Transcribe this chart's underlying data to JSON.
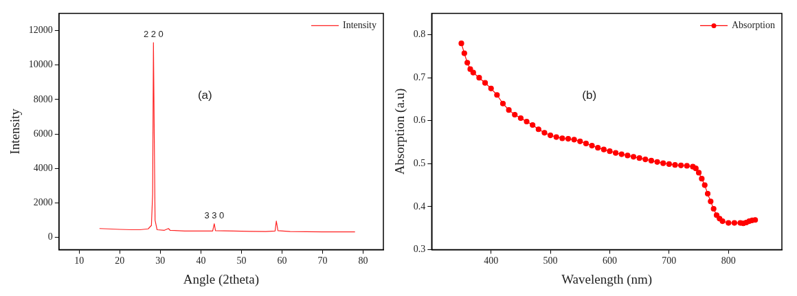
{
  "chart_data": [
    {
      "type": "line",
      "xlabel": "Angle (2theta)",
      "ylabel": "Intensity",
      "xlim": [
        5,
        85
      ],
      "ylim": [
        -700,
        13000
      ],
      "xticks": [
        10,
        20,
        30,
        40,
        50,
        60,
        70,
        80
      ],
      "yticks": [
        0,
        2000,
        4000,
        6000,
        8000,
        10000,
        12000
      ],
      "grid": false,
      "legend": "top right",
      "marker": "none",
      "line_style": "solid",
      "annotations": [
        "(a)",
        {
          "text": "2 2 0",
          "x": 28.3,
          "y": 11300
        },
        {
          "text": "3 3 0",
          "x": 43.3,
          "y": 800
        }
      ],
      "series": [
        {
          "name": "Intensity",
          "color": "#ff2020",
          "x": [
            15,
            17,
            20,
            23,
            25,
            27,
            27.8,
            28.1,
            28.3,
            28.5,
            28.7,
            29.2,
            31,
            32,
            32.4,
            36,
            40,
            42.9,
            43.3,
            43.6,
            48,
            52,
            56,
            58.3,
            58.6,
            59,
            62,
            66,
            70,
            74,
            78
          ],
          "values": [
            520,
            500,
            470,
            450,
            450,
            500,
            700,
            2500,
            11300,
            6000,
            1000,
            450,
            420,
            520,
            420,
            380,
            380,
            380,
            800,
            400,
            380,
            360,
            350,
            380,
            950,
            400,
            350,
            340,
            330,
            330,
            330
          ]
        }
      ]
    },
    {
      "type": "line",
      "xlabel": "Wavelength (nm)",
      "ylabel": "Absorption (a.u)",
      "xlim": [
        300,
        890
      ],
      "ylim": [
        0.3,
        0.85
      ],
      "xticks": [
        400,
        500,
        600,
        700,
        800
      ],
      "yticks": [
        0.3,
        0.4,
        0.5,
        0.6,
        0.7,
        0.8
      ],
      "grid": false,
      "legend": "top right",
      "marker": "circle",
      "line_style": "solid",
      "annotations": [
        "(b)"
      ],
      "series": [
        {
          "name": "Absorption",
          "color": "#ff0000",
          "x": [
            350,
            355,
            360,
            365,
            370,
            380,
            390,
            400,
            410,
            420,
            430,
            440,
            450,
            460,
            470,
            480,
            490,
            500,
            510,
            520,
            530,
            540,
            550,
            560,
            570,
            580,
            590,
            600,
            610,
            620,
            630,
            640,
            650,
            660,
            670,
            680,
            690,
            700,
            710,
            720,
            730,
            740,
            745,
            750,
            755,
            760,
            765,
            770,
            775,
            780,
            785,
            790,
            800,
            810,
            820,
            825,
            830,
            835,
            840,
            845
          ],
          "values": [
            0.78,
            0.757,
            0.735,
            0.72,
            0.712,
            0.7,
            0.688,
            0.675,
            0.66,
            0.64,
            0.625,
            0.614,
            0.606,
            0.598,
            0.59,
            0.58,
            0.572,
            0.566,
            0.562,
            0.559,
            0.558,
            0.556,
            0.552,
            0.547,
            0.542,
            0.537,
            0.533,
            0.529,
            0.525,
            0.522,
            0.519,
            0.516,
            0.513,
            0.51,
            0.507,
            0.504,
            0.501,
            0.499,
            0.497,
            0.496,
            0.495,
            0.493,
            0.489,
            0.479,
            0.465,
            0.45,
            0.43,
            0.412,
            0.395,
            0.38,
            0.372,
            0.366,
            0.362,
            0.362,
            0.362,
            0.361,
            0.363,
            0.366,
            0.368,
            0.369
          ]
        }
      ]
    }
  ]
}
